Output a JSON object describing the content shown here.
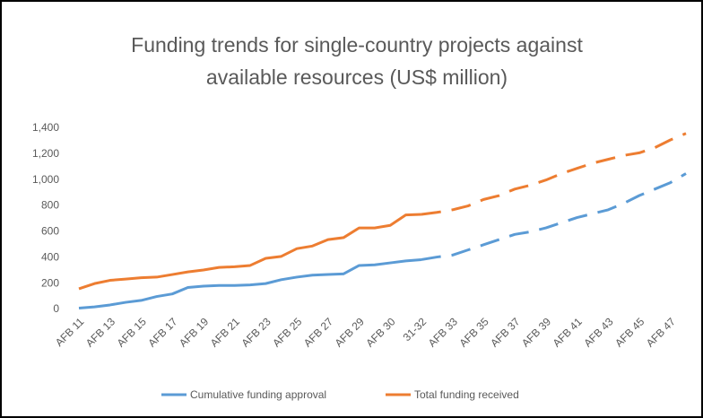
{
  "chart_data": {
    "type": "line",
    "title": [
      "Funding trends for single-country projects against",
      "available resources (US$ million)"
    ],
    "categories": [
      "AFB 11",
      null,
      "AFB 13",
      null,
      "AFB 15",
      null,
      "AFB 17",
      null,
      "AFB 19",
      null,
      "AFB 21",
      null,
      "AFB 23",
      null,
      "AFB 25",
      null,
      "AFB 27",
      null,
      "AFB 29",
      null,
      "AFB 30",
      null,
      "31-32",
      null,
      "AFB 33",
      null,
      "AFB 35",
      null,
      "AFB 37",
      null,
      "AFB 39",
      null,
      "AFB 41",
      null,
      "AFB 43",
      null,
      "AFB 45",
      null,
      "AFB 47",
      null
    ],
    "projected_from": "31-32",
    "series": [
      {
        "name": "Cumulative funding approval",
        "color": "#5b9bd5",
        "values": [
          10,
          20,
          35,
          55,
          70,
          100,
          120,
          170,
          180,
          185,
          185,
          190,
          200,
          230,
          250,
          265,
          270,
          275,
          340,
          345,
          360,
          375,
          385,
          405,
          420,
          460,
          500,
          540,
          580,
          600,
          630,
          670,
          710,
          740,
          770,
          820,
          880,
          930,
          980,
          1050
        ]
      },
      {
        "name": "Total funding received",
        "color": "#ed7d31",
        "values": [
          160,
          200,
          225,
          235,
          245,
          250,
          270,
          290,
          305,
          325,
          330,
          340,
          395,
          410,
          470,
          490,
          540,
          555,
          630,
          630,
          650,
          730,
          735,
          750,
          770,
          800,
          850,
          880,
          930,
          960,
          1000,
          1050,
          1090,
          1130,
          1160,
          1190,
          1210,
          1250,
          1310,
          1360
        ]
      }
    ],
    "ylim": [
      0,
      1400
    ],
    "yticks": [
      0,
      {
        "value": 200,
        "label": "200"
      },
      {
        "value": 400,
        "label": "400"
      },
      {
        "value": 600,
        "label": "600"
      },
      {
        "value": 800,
        "label": "800"
      },
      {
        "value": 1000,
        "label": "1,000"
      },
      {
        "value": 1200,
        "label": "1,200"
      },
      {
        "value": 1400,
        "label": "1,400"
      }
    ],
    "legend": "bottom"
  }
}
